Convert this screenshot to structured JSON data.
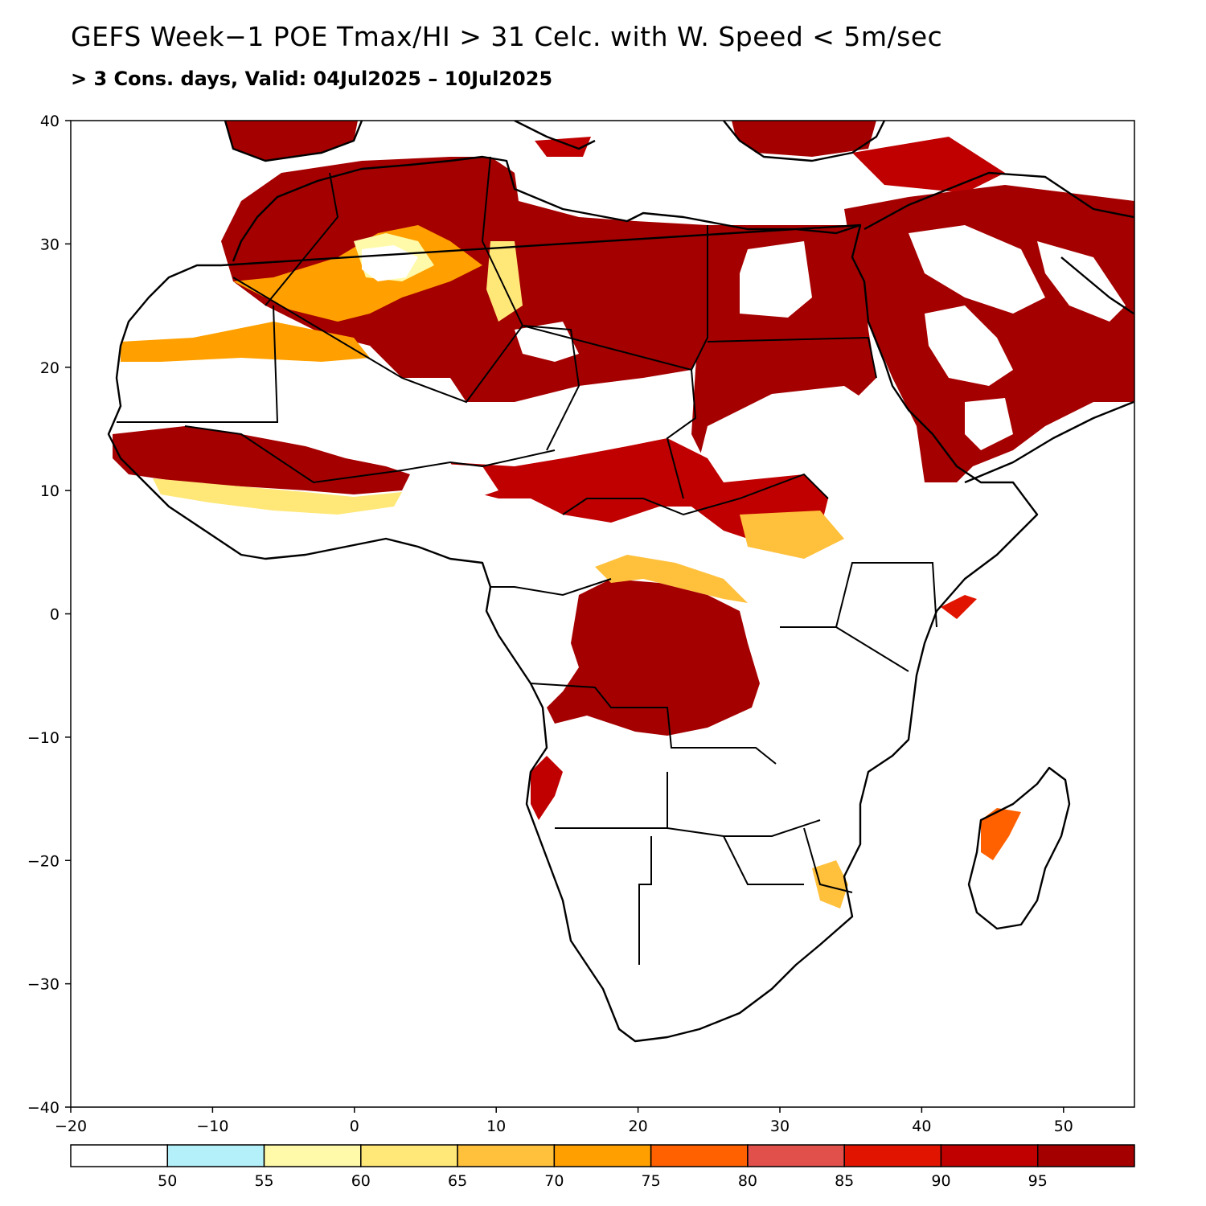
{
  "title": "GEFS Week−1 POE Tmax/HI > 31 Celc. with W. Speed < 5m/sec",
  "subtitle": "> 3 Cons. days, Valid: 04Jul2025 – 10Jul2025",
  "map": {
    "lon_range": [
      -20,
      55
    ],
    "lat_range": [
      -40,
      40
    ],
    "lon_ticks": [
      -20,
      -10,
      0,
      10,
      20,
      30,
      40,
      50
    ],
    "lat_ticks": [
      -40,
      -30,
      -20,
      -10,
      0,
      10,
      20,
      30,
      40
    ],
    "lon_tick_labels": [
      "−20",
      "−10",
      "0",
      "10",
      "20",
      "30",
      "40",
      "50"
    ],
    "lat_tick_labels": [
      "−40",
      "−30",
      "−20",
      "−10",
      "0",
      "10",
      "20",
      "30",
      "40"
    ]
  },
  "colorbar": {
    "labels": [
      "50",
      "55",
      "60",
      "65",
      "70",
      "75",
      "80",
      "85",
      "90",
      "95"
    ],
    "colors": [
      "#ffffff",
      "#b4f0fa",
      "#fffaaa",
      "#ffe878",
      "#ffc03c",
      "#ffa000",
      "#ff6000",
      "#e1504b",
      "#e11400",
      "#c00000",
      "#a50000"
    ]
  }
}
